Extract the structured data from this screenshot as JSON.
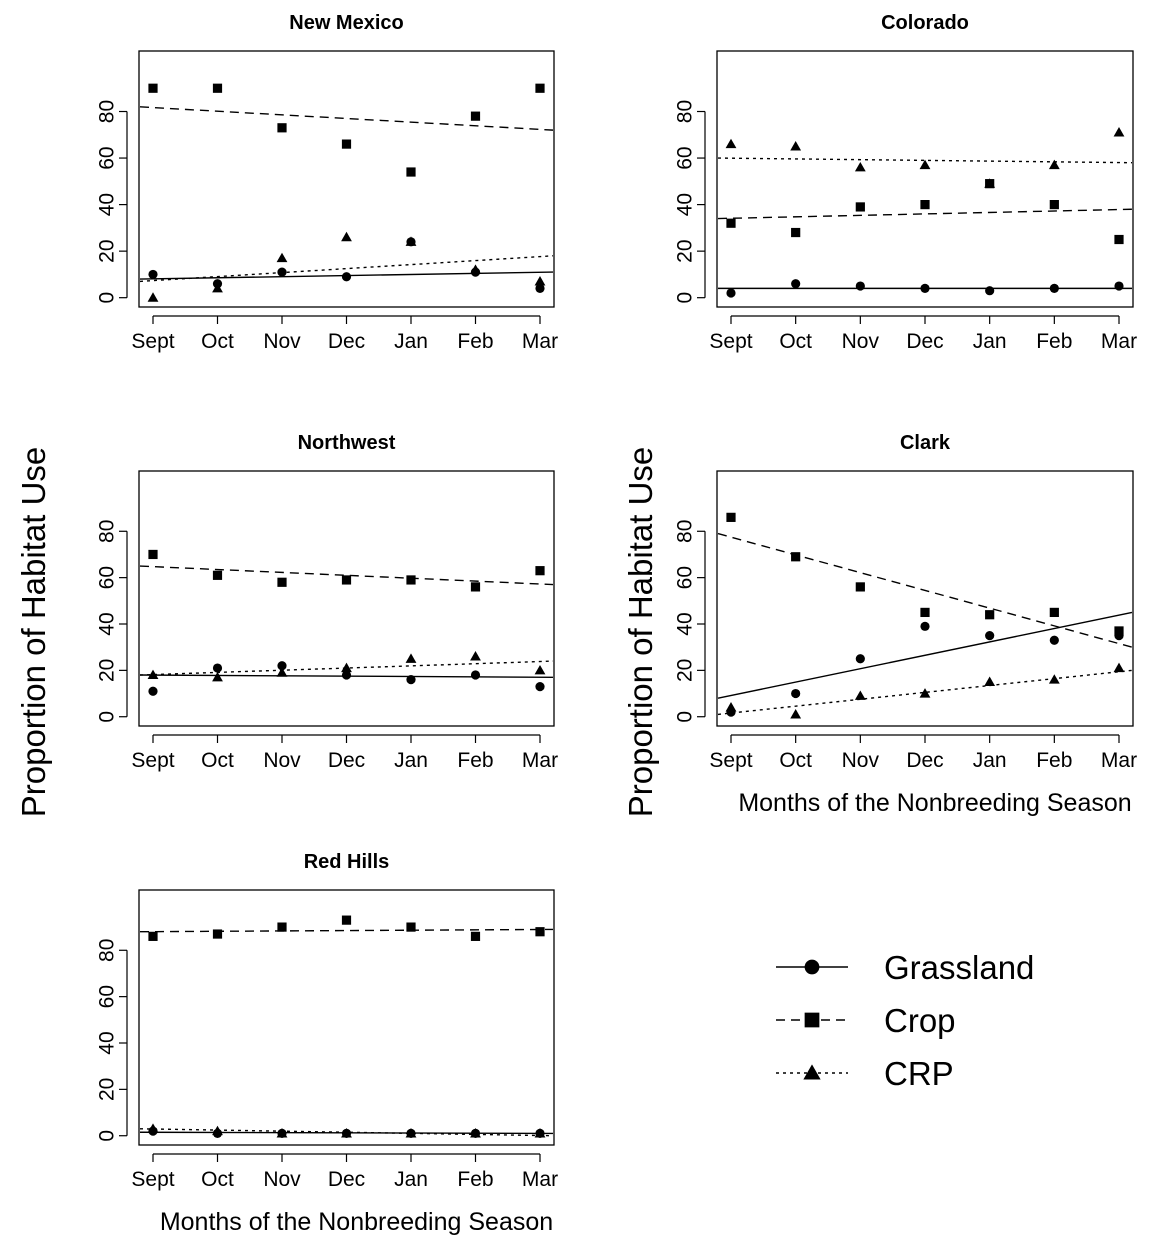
{
  "chart_data": [
    {
      "type": "scatter",
      "title": "New Mexico",
      "categories": [
        "Sept",
        "Oct",
        "Nov",
        "Dec",
        "Jan",
        "Feb",
        "Mar"
      ],
      "yticks": [
        0,
        20,
        40,
        60,
        80
      ],
      "ylim": [
        -4,
        106
      ],
      "series": [
        {
          "name": "Grassland",
          "values": [
            10,
            6,
            11,
            9,
            24,
            11,
            4
          ],
          "trend": [
            8,
            11
          ]
        },
        {
          "name": "Crop",
          "values": [
            90,
            90,
            73,
            66,
            54,
            78,
            90
          ],
          "trend": [
            82,
            72
          ]
        },
        {
          "name": "CRP",
          "values": [
            0,
            4,
            17,
            26,
            24,
            12,
            7
          ],
          "trend": [
            7,
            18
          ]
        }
      ]
    },
    {
      "type": "scatter",
      "title": "Colorado",
      "categories": [
        "Sept",
        "Oct",
        "Nov",
        "Dec",
        "Jan",
        "Feb",
        "Mar"
      ],
      "yticks": [
        0,
        20,
        40,
        60,
        80
      ],
      "ylim": [
        -4,
        106
      ],
      "series": [
        {
          "name": "Grassland",
          "values": [
            2,
            6,
            5,
            4,
            3,
            4,
            5
          ],
          "trend": [
            4,
            4
          ]
        },
        {
          "name": "Crop",
          "values": [
            32,
            28,
            39,
            40,
            49,
            40,
            25
          ],
          "trend": [
            34,
            38
          ]
        },
        {
          "name": "CRP",
          "values": [
            66,
            65,
            56,
            57,
            49,
            57,
            71
          ],
          "trend": [
            60,
            58
          ]
        }
      ]
    },
    {
      "type": "scatter",
      "title": "Northwest",
      "categories": [
        "Sept",
        "Oct",
        "Nov",
        "Dec",
        "Jan",
        "Feb",
        "Mar"
      ],
      "yticks": [
        0,
        20,
        40,
        60,
        80
      ],
      "ylim": [
        -4,
        106
      ],
      "series": [
        {
          "name": "Grassland",
          "values": [
            11,
            21,
            22,
            18,
            16,
            18,
            13
          ],
          "trend": [
            18,
            17
          ]
        },
        {
          "name": "Crop",
          "values": [
            70,
            61,
            58,
            59,
            59,
            56,
            63
          ],
          "trend": [
            65,
            57
          ]
        },
        {
          "name": "CRP",
          "values": [
            18,
            17,
            19,
            21,
            25,
            26,
            20
          ],
          "trend": [
            18,
            24
          ]
        }
      ]
    },
    {
      "type": "scatter",
      "title": "Clark",
      "categories": [
        "Sept",
        "Oct",
        "Nov",
        "Dec",
        "Jan",
        "Feb",
        "Mar"
      ],
      "xlabel": "Months of the Nonbreeding Season",
      "yticks": [
        0,
        20,
        40,
        60,
        80
      ],
      "ylim": [
        -4,
        106
      ],
      "series": [
        {
          "name": "Grassland",
          "values": [
            2,
            10,
            25,
            39,
            35,
            33,
            35
          ],
          "trend": [
            8,
            45
          ]
        },
        {
          "name": "Crop",
          "values": [
            86,
            69,
            56,
            45,
            44,
            45,
            37
          ],
          "trend": [
            79,
            30
          ]
        },
        {
          "name": "CRP",
          "values": [
            4,
            1,
            9,
            10,
            15,
            16,
            21
          ],
          "trend": [
            1,
            20
          ]
        }
      ]
    },
    {
      "type": "scatter",
      "title": "Red Hills",
      "categories": [
        "Sept",
        "Oct",
        "Nov",
        "Dec",
        "Jan",
        "Feb",
        "Mar"
      ],
      "xlabel": "Months of the Nonbreeding Season",
      "yticks": [
        0,
        20,
        40,
        60,
        80
      ],
      "ylim": [
        -4,
        106
      ],
      "series": [
        {
          "name": "Grassland",
          "values": [
            2,
            1,
            1,
            1,
            1,
            1,
            1
          ],
          "trend": [
            1.5,
            1
          ]
        },
        {
          "name": "Crop",
          "values": [
            86,
            87,
            90,
            93,
            90,
            86,
            88
          ],
          "trend": [
            88,
            89
          ]
        },
        {
          "name": "CRP",
          "values": [
            3,
            2,
            1,
            1,
            1,
            1,
            1
          ],
          "trend": [
            3,
            0
          ]
        }
      ]
    }
  ],
  "ylabel": "Proportion of Habitat Use",
  "legend": {
    "position": "bottom-right",
    "entries": [
      {
        "label": "Grassland",
        "marker": "circle",
        "line": "solid"
      },
      {
        "label": "Crop",
        "marker": "square",
        "line": "dashed"
      },
      {
        "label": "CRP",
        "marker": "triangle",
        "line": "dotted"
      }
    ]
  }
}
